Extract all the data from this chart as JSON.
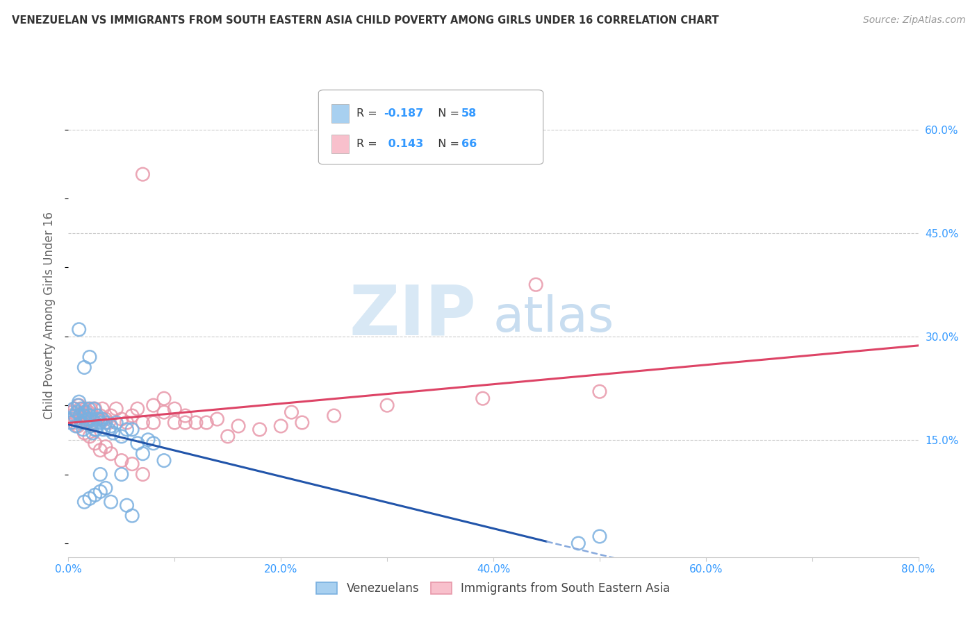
{
  "title": "VENEZUELAN VS IMMIGRANTS FROM SOUTH EASTERN ASIA CHILD POVERTY AMONG GIRLS UNDER 16 CORRELATION CHART",
  "source": "Source: ZipAtlas.com",
  "ylabel": "Child Poverty Among Girls Under 16",
  "legend_bottom": [
    "Venezuelans",
    "Immigrants from South Eastern Asia"
  ],
  "series": [
    {
      "name": "Venezuelans",
      "R": -0.187,
      "N": 58,
      "color": "#a8d0f0",
      "edge_color": "#7ab0e0",
      "line_color": "#2255aa",
      "line_dash_color": "#88aadd"
    },
    {
      "name": "Immigrants from South Eastern Asia",
      "R": 0.143,
      "N": 66,
      "color": "#f8c0cc",
      "edge_color": "#e898aa",
      "line_color": "#dd4466",
      "line_dash_color": "#dd4466"
    }
  ],
  "xlim": [
    0.0,
    0.8
  ],
  "ylim": [
    -0.02,
    0.68
  ],
  "xticks": [
    0.0,
    0.1,
    0.2,
    0.3,
    0.4,
    0.5,
    0.6,
    0.7,
    0.8
  ],
  "xticklabels": [
    "0.0%",
    "",
    "20.0%",
    "",
    "40.0%",
    "",
    "60.0%",
    "",
    "80.0%"
  ],
  "ytick_right_labels": [
    "15.0%",
    "30.0%",
    "45.0%",
    "60.0%"
  ],
  "ytick_right_values": [
    0.15,
    0.3,
    0.45,
    0.6
  ],
  "watermark_zip": "ZIP",
  "watermark_atlas": "atlas",
  "background_color": "#ffffff",
  "venezuelan_x": [
    0.002,
    0.004,
    0.005,
    0.006,
    0.007,
    0.008,
    0.009,
    0.01,
    0.011,
    0.012,
    0.013,
    0.014,
    0.015,
    0.016,
    0.017,
    0.018,
    0.019,
    0.02,
    0.021,
    0.022,
    0.023,
    0.024,
    0.025,
    0.026,
    0.027,
    0.028,
    0.03,
    0.032,
    0.033,
    0.035,
    0.038,
    0.04,
    0.042,
    0.045,
    0.05,
    0.055,
    0.06,
    0.065,
    0.07,
    0.075,
    0.08,
    0.09,
    0.01,
    0.015,
    0.02,
    0.025,
    0.03,
    0.035,
    0.04,
    0.05,
    0.055,
    0.06,
    0.48,
    0.5,
    0.03,
    0.025,
    0.02,
    0.015
  ],
  "venezuelan_y": [
    0.175,
    0.18,
    0.195,
    0.185,
    0.17,
    0.19,
    0.2,
    0.205,
    0.185,
    0.175,
    0.195,
    0.165,
    0.185,
    0.19,
    0.175,
    0.18,
    0.195,
    0.185,
    0.17,
    0.18,
    0.16,
    0.195,
    0.175,
    0.165,
    0.185,
    0.18,
    0.175,
    0.18,
    0.165,
    0.175,
    0.165,
    0.17,
    0.16,
    0.175,
    0.155,
    0.165,
    0.165,
    0.145,
    0.13,
    0.15,
    0.145,
    0.12,
    0.31,
    0.255,
    0.27,
    0.165,
    0.1,
    0.08,
    0.06,
    0.1,
    0.055,
    0.04,
    0.0,
    0.01,
    0.075,
    0.07,
    0.065,
    0.06
  ],
  "sea_x": [
    0.002,
    0.004,
    0.005,
    0.006,
    0.007,
    0.008,
    0.009,
    0.01,
    0.011,
    0.012,
    0.013,
    0.014,
    0.015,
    0.016,
    0.017,
    0.018,
    0.019,
    0.02,
    0.021,
    0.022,
    0.023,
    0.025,
    0.027,
    0.03,
    0.032,
    0.035,
    0.038,
    0.04,
    0.045,
    0.05,
    0.055,
    0.06,
    0.065,
    0.07,
    0.08,
    0.09,
    0.1,
    0.11,
    0.12,
    0.13,
    0.14,
    0.15,
    0.16,
    0.18,
    0.2,
    0.22,
    0.25,
    0.015,
    0.02,
    0.025,
    0.03,
    0.035,
    0.04,
    0.05,
    0.06,
    0.07,
    0.44,
    0.07,
    0.08,
    0.09,
    0.1,
    0.11,
    0.21,
    0.3,
    0.39,
    0.5
  ],
  "sea_y": [
    0.185,
    0.19,
    0.175,
    0.195,
    0.18,
    0.185,
    0.17,
    0.2,
    0.195,
    0.185,
    0.175,
    0.19,
    0.185,
    0.195,
    0.18,
    0.175,
    0.19,
    0.185,
    0.195,
    0.175,
    0.185,
    0.195,
    0.18,
    0.185,
    0.195,
    0.18,
    0.175,
    0.185,
    0.195,
    0.18,
    0.175,
    0.185,
    0.195,
    0.175,
    0.175,
    0.19,
    0.175,
    0.185,
    0.175,
    0.175,
    0.18,
    0.155,
    0.17,
    0.165,
    0.17,
    0.175,
    0.185,
    0.16,
    0.155,
    0.145,
    0.135,
    0.14,
    0.13,
    0.12,
    0.115,
    0.1,
    0.375,
    0.535,
    0.2,
    0.21,
    0.195,
    0.175,
    0.19,
    0.2,
    0.21,
    0.22
  ]
}
